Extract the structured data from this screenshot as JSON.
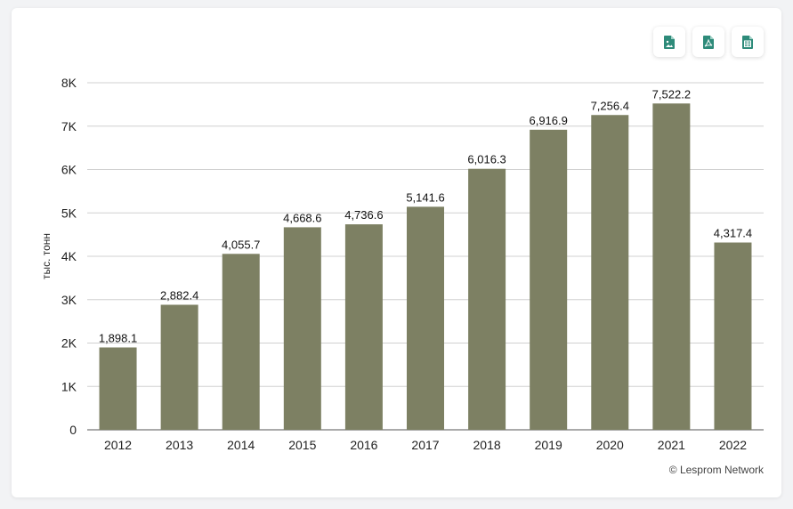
{
  "toolbar": {
    "buttons": [
      {
        "icon": "image-file-icon",
        "color": "#2e8b7a"
      },
      {
        "icon": "pdf-file-icon",
        "color": "#2e8b7a"
      },
      {
        "icon": "spreadsheet-file-icon",
        "color": "#2e8b7a"
      }
    ]
  },
  "credit": "© Lesprom Network",
  "chart_data": {
    "type": "bar",
    "categories": [
      "2012",
      "2013",
      "2014",
      "2015",
      "2016",
      "2017",
      "2018",
      "2019",
      "2020",
      "2021",
      "2022"
    ],
    "values": [
      1898.1,
      2882.4,
      4055.7,
      4668.6,
      4736.6,
      5141.6,
      6016.3,
      6916.9,
      7256.4,
      7522.2,
      4317.4
    ],
    "value_labels": [
      "1,898.1",
      "2,882.4",
      "4,055.7",
      "4,668.6",
      "4,736.6",
      "5,141.6",
      "6,016.3",
      "6,916.9",
      "7,256.4",
      "7,522.2",
      "4,317.4"
    ],
    "ylabel": "тыс. тонн",
    "ylim": [
      0,
      8000
    ],
    "yticks": [
      0,
      1000,
      2000,
      3000,
      4000,
      5000,
      6000,
      7000,
      8000
    ],
    "ytick_labels": [
      "0",
      "1K",
      "2K",
      "3K",
      "4K",
      "5K",
      "6K",
      "7K",
      "8K"
    ],
    "grid": true,
    "legend": "none",
    "bar_color": "#7d8063"
  }
}
